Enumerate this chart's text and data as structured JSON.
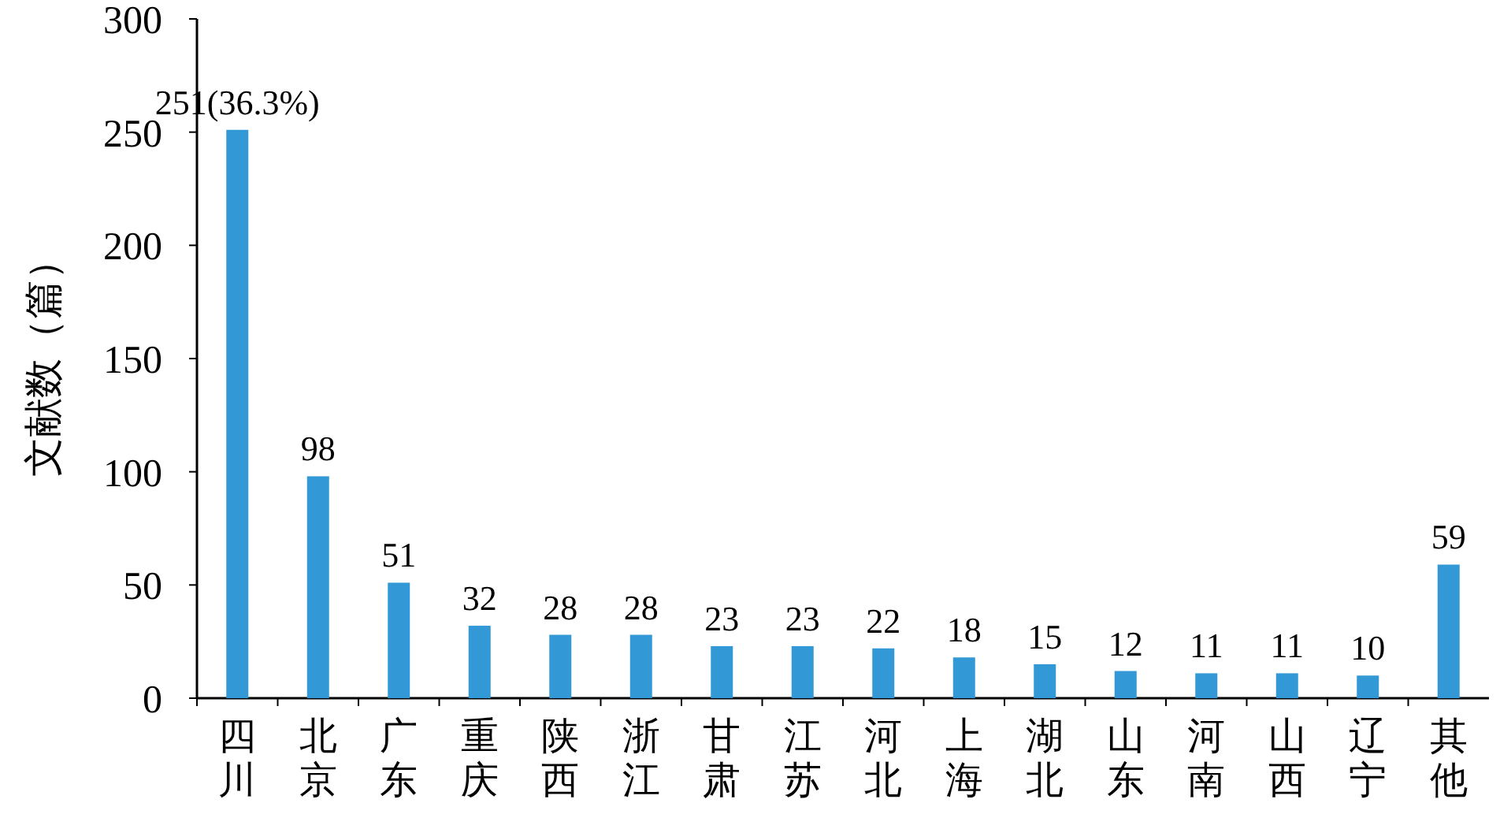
{
  "chart_data": {
    "type": "bar",
    "ylabel": "文献数（篇）",
    "categories": [
      "四川",
      "北京",
      "广东",
      "重庆",
      "陕西",
      "浙江",
      "甘肃",
      "江苏",
      "河北",
      "上海",
      "湖北",
      "山东",
      "河南",
      "山西",
      "辽宁",
      "其他"
    ],
    "values": [
      251,
      98,
      51,
      32,
      28,
      28,
      23,
      23,
      22,
      18,
      15,
      12,
      11,
      11,
      10,
      59
    ],
    "value_labels": [
      "251(36.3%)",
      "98",
      "51",
      "32",
      "28",
      "28",
      "23",
      "23",
      "22",
      "18",
      "15",
      "12",
      "11",
      "11",
      "10",
      "59"
    ],
    "color": "#3399d6",
    "ylim": [
      0,
      300
    ],
    "yticks": [
      0,
      50,
      100,
      150,
      200,
      250,
      300
    ],
    "grid": false
  }
}
